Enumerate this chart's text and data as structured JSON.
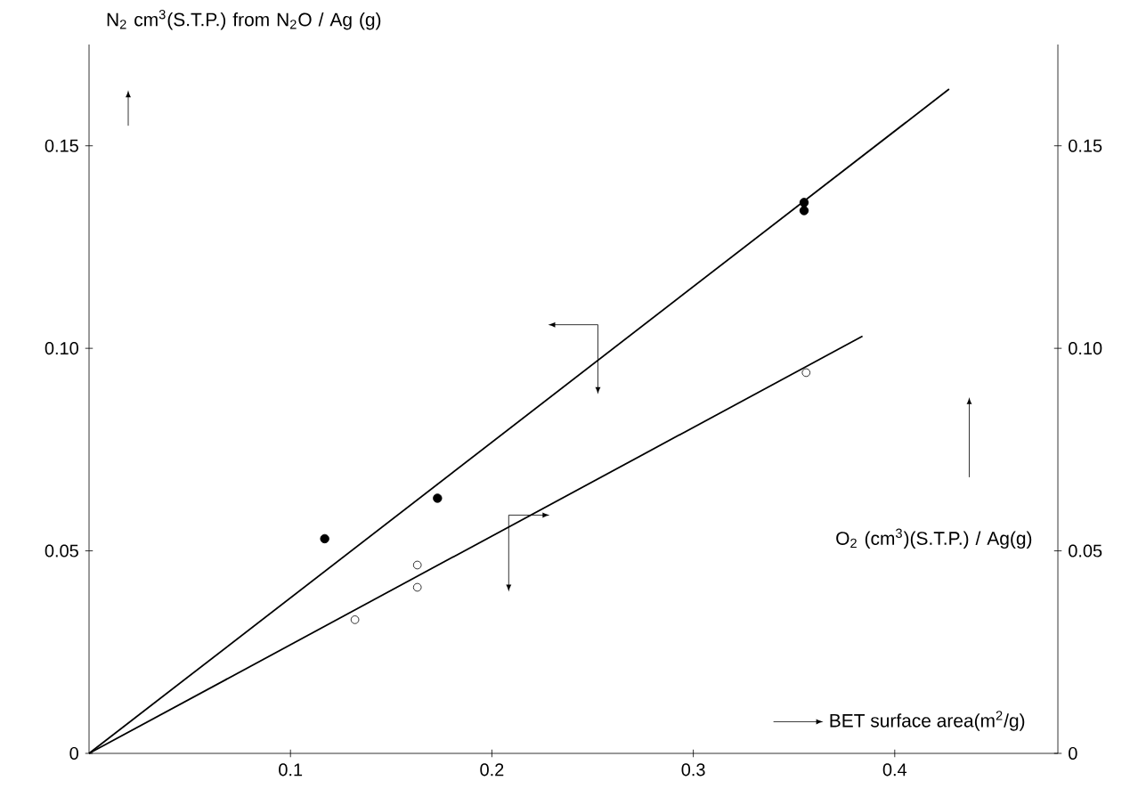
{
  "chart_data": {
    "type": "scatter",
    "xlabel": "BET  surface area(m$^{2}$/g)",
    "ylabel": "N$_{2}$ cm$^{3}$(S.T.P.) from N$_{2}$O / Ag (g)",
    "y2label": "O$_{2}$ (cm$^{3}$)(S.T.P.) / Ag(g)",
    "xlim": [
      0,
      0.481
    ],
    "ylim": [
      0,
      0.175
    ],
    "y2lim": [
      0,
      0.175
    ],
    "xticks": [
      0.1,
      0.2,
      0.3,
      0.4
    ],
    "yticks": [
      0,
      0.05,
      {
        "value": 0.1,
        "label": "0.10"
      },
      0.15
    ],
    "y2ticks": [
      0,
      0.05,
      {
        "value": 0.1,
        "label": "0.10"
      },
      0.15
    ],
    "marker": "circle",
    "series": [
      {
        "color": "#000000",
        "x": [
          0.117,
          0.173,
          0.355,
          0.355
        ],
        "values": [
          0.053,
          0.063,
          0.136,
          0.134
        ]
      },
      {
        "axis": "y2",
        "color": "#000000",
        "x": [
          0.132,
          0.163,
          0.163,
          0.356
        ],
        "values": [
          0.033,
          0.0465,
          0.041,
          0.094
        ]
      },
      {
        "type": "line",
        "color": "#000000",
        "marker": "none",
        "x": [
          0,
          0.427
        ],
        "values": [
          0,
          0.164
        ]
      },
      {
        "type": "line",
        "axis": "y2",
        "color": "#000000",
        "marker": "none",
        "x": [
          0,
          0.384
        ],
        "values": [
          0,
          0.103
        ]
      }
    ]
  }
}
